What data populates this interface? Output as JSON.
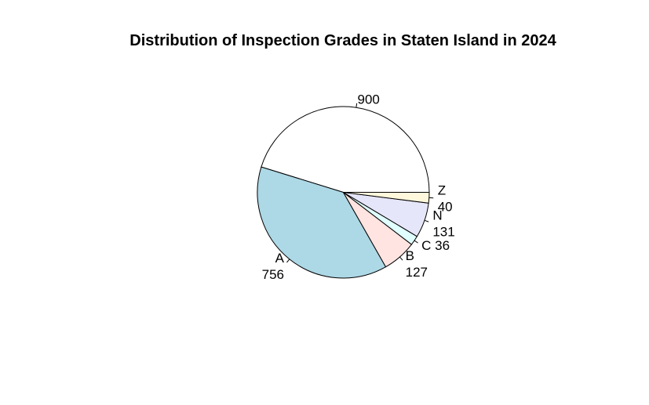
{
  "chart_data": {
    "type": "pie",
    "title": "Distribution of Inspection Grades in Staten Island in 2024",
    "slices": [
      {
        "category": "",
        "value": 900,
        "label": "900",
        "color": "#ffffff"
      },
      {
        "category": "A",
        "value": 756,
        "label": "A\n756",
        "color": "#add8e6"
      },
      {
        "category": "B",
        "value": 127,
        "label": "B\n127",
        "color": "#ffe4e1"
      },
      {
        "category": "C",
        "value": 36,
        "label": "C 36",
        "color": "#e0ffff"
      },
      {
        "category": "N",
        "value": 131,
        "label": "N\n131",
        "color": "#e6e6fa"
      },
      {
        "category": "Z",
        "value": 40,
        "label": "Z\n40",
        "color": "#fff8dc"
      }
    ],
    "start_angle": "0 degrees (3 o'clock), clockwise"
  }
}
